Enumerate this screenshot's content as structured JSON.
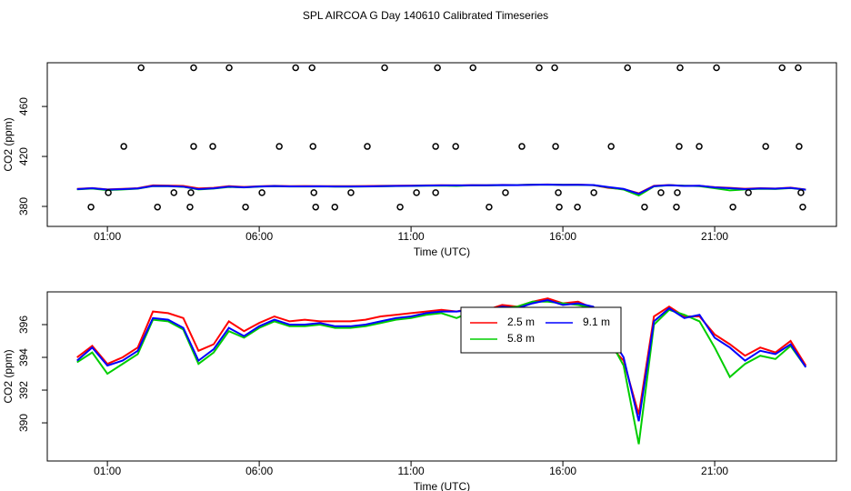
{
  "title": "SPL AIRCOA G  Day 140610  Calibrated Timeseries",
  "chart_data": [
    {
      "type": "line",
      "xlabel": "Time (UTC)",
      "ylabel": "CO2 (ppm)",
      "xlim": [
        -0.98,
        25.01
      ],
      "ylim": [
        364,
        495
      ],
      "xticks": [
        {
          "value": 1,
          "label": "01:00"
        },
        {
          "value": 6,
          "label": "06:00"
        },
        {
          "value": 11,
          "label": "11:00"
        },
        {
          "value": 16,
          "label": "16:00"
        },
        {
          "value": 21,
          "label": "21:00"
        }
      ],
      "yticks": [
        380,
        420,
        460
      ],
      "x": [
        0,
        0.5,
        1,
        1.5,
        2,
        2.5,
        3,
        3.5,
        4,
        4.5,
        5,
        5.5,
        6,
        6.5,
        7,
        7.5,
        8,
        8.5,
        9,
        9.5,
        10,
        10.5,
        11,
        11.5,
        12,
        12.5,
        13,
        13.5,
        14,
        14.5,
        15,
        15.5,
        16,
        16.5,
        17,
        17.5,
        18,
        18.5,
        19,
        19.5,
        20,
        20.5,
        21,
        21.5,
        22,
        22.5,
        23,
        23.5,
        24
      ],
      "series": [
        {
          "color": "#ff0000",
          "values": [
            394.0,
            394.7,
            393.6,
            394.0,
            394.6,
            396.8,
            396.7,
            396.4,
            394.4,
            394.8,
            396.2,
            395.6,
            396.1,
            396.5,
            396.2,
            396.3,
            396.2,
            396.2,
            396.2,
            396.3,
            396.5,
            396.6,
            396.7,
            396.8,
            396.9,
            396.8,
            397.0,
            396.9,
            397.2,
            397.1,
            397.4,
            397.6,
            397.3,
            397.4,
            397.0,
            394.8,
            393.8,
            390.5,
            396.5,
            397.1,
            396.5,
            396.5,
            395.4,
            394.8,
            394.1,
            394.6,
            394.3,
            395.0,
            393.5
          ]
        },
        {
          "color": "#00cd00",
          "values": [
            393.7,
            394.3,
            393.0,
            393.6,
            394.2,
            396.3,
            396.2,
            395.7,
            393.6,
            394.3,
            395.6,
            395.2,
            395.8,
            396.2,
            395.9,
            395.9,
            396.0,
            395.8,
            395.8,
            395.9,
            396.1,
            396.3,
            396.4,
            396.6,
            396.7,
            396.4,
            396.8,
            396.8,
            397.0,
            397.1,
            397.4,
            397.4,
            397.3,
            397.2,
            397.0,
            395.2,
            393.5,
            388.7,
            396.0,
            396.9,
            396.6,
            396.2,
            394.6,
            392.8,
            393.6,
            394.1,
            393.9,
            394.7,
            393.4
          ]
        },
        {
          "color": "#0000ff",
          "values": [
            393.8,
            394.6,
            393.5,
            393.8,
            394.4,
            396.4,
            396.3,
            395.8,
            393.8,
            394.5,
            395.8,
            395.3,
            395.9,
            396.3,
            396.0,
            396.0,
            396.1,
            395.9,
            395.9,
            396.0,
            396.2,
            396.4,
            396.5,
            396.7,
            396.8,
            396.8,
            396.9,
            396.9,
            397.1,
            397.0,
            397.3,
            397.5,
            397.2,
            397.3,
            397.1,
            395.5,
            394.0,
            390.1,
            396.2,
            397.0,
            396.4,
            396.6,
            395.2,
            394.6,
            393.8,
            394.4,
            394.2,
            394.8,
            393.4
          ]
        }
      ],
      "points": {
        "color": "#000000",
        "x": [
          2.11,
          3.84,
          5.01,
          7.2,
          7.74,
          10.13,
          11.87,
          13.04,
          15.22,
          15.73,
          18.13,
          19.86,
          21.06,
          23.22,
          23.75,
          1.54,
          3.84,
          4.47,
          6.66,
          7.77,
          9.56,
          11.81,
          12.47,
          14.65,
          15.76,
          17.59,
          19.83,
          20.49,
          22.68,
          23.78,
          1.03,
          3.19,
          3.75,
          6.09,
          7.8,
          9.02,
          11.18,
          11.81,
          14.11,
          15.85,
          17.02,
          19.23,
          19.77,
          22.11,
          23.84,
          0.46,
          2.65,
          3.72,
          5.55,
          7.86,
          8.49,
          10.64,
          13.57,
          15.88,
          16.48,
          18.69,
          19.74,
          21.6,
          23.9
        ],
        "y": [
          491,
          491,
          491,
          491,
          491,
          491,
          491,
          491,
          491,
          491,
          491,
          491,
          491,
          491,
          491,
          428,
          428,
          428,
          428,
          428,
          428,
          428,
          428,
          428,
          428,
          428,
          428,
          428,
          428,
          428,
          391,
          391,
          391,
          391,
          391,
          391,
          391,
          391,
          391,
          391,
          391,
          391,
          391,
          391,
          391,
          379.5,
          379.5,
          379.5,
          379.5,
          379.5,
          379.5,
          379.5,
          379.5,
          379.5,
          379.5,
          379.5,
          379.5,
          379.5,
          379.5
        ]
      }
    },
    {
      "type": "line",
      "xlabel": "Time (UTC)",
      "ylabel": "CO2 (ppm)",
      "xlim": [
        -0.98,
        25.01
      ],
      "ylim": [
        387.67,
        398.0
      ],
      "xticks": [
        {
          "value": 1,
          "label": "01:00"
        },
        {
          "value": 6,
          "label": "06:00"
        },
        {
          "value": 11,
          "label": "11:00"
        },
        {
          "value": 16,
          "label": "16:00"
        },
        {
          "value": 21,
          "label": "21:00"
        }
      ],
      "yticks": [
        390,
        392,
        394,
        396
      ],
      "x": [
        0,
        0.5,
        1,
        1.5,
        2,
        2.5,
        3,
        3.5,
        4,
        4.5,
        5,
        5.5,
        6,
        6.5,
        7,
        7.5,
        8,
        8.5,
        9,
        9.5,
        10,
        10.5,
        11,
        11.5,
        12,
        12.5,
        13,
        13.5,
        14,
        14.5,
        15,
        15.5,
        16,
        16.5,
        17,
        17.5,
        18,
        18.5,
        19,
        19.5,
        20,
        20.5,
        21,
        21.5,
        22,
        22.5,
        23,
        23.5,
        24
      ],
      "series": [
        {
          "name": "2.5 m",
          "color": "#ff0000",
          "values": [
            394.0,
            394.7,
            393.6,
            394.0,
            394.6,
            396.8,
            396.7,
            396.4,
            394.4,
            394.8,
            396.2,
            395.6,
            396.1,
            396.5,
            396.2,
            396.3,
            396.2,
            396.2,
            396.2,
            396.3,
            396.5,
            396.6,
            396.7,
            396.8,
            396.9,
            396.8,
            397.0,
            396.9,
            397.2,
            397.1,
            397.4,
            397.6,
            397.3,
            397.4,
            397.0,
            394.8,
            393.8,
            390.5,
            396.5,
            397.1,
            396.5,
            396.5,
            395.4,
            394.8,
            394.1,
            394.6,
            394.3,
            395.0,
            393.5
          ]
        },
        {
          "name": "5.8 m",
          "color": "#00cd00",
          "values": [
            393.7,
            394.3,
            393.0,
            393.6,
            394.2,
            396.3,
            396.2,
            395.7,
            393.6,
            394.3,
            395.6,
            395.2,
            395.8,
            396.2,
            395.9,
            395.9,
            396.0,
            395.8,
            395.8,
            395.9,
            396.1,
            396.3,
            396.4,
            396.6,
            396.7,
            396.4,
            396.8,
            396.8,
            397.0,
            397.1,
            397.4,
            397.4,
            397.3,
            397.2,
            397.0,
            395.2,
            393.5,
            388.7,
            396.0,
            396.9,
            396.6,
            396.2,
            394.6,
            392.8,
            393.6,
            394.1,
            393.9,
            394.7,
            393.4
          ]
        },
        {
          "name": "9.1 m",
          "color": "#0000ff",
          "values": [
            393.8,
            394.6,
            393.5,
            393.8,
            394.4,
            396.4,
            396.3,
            395.8,
            393.8,
            394.5,
            395.8,
            395.3,
            395.9,
            396.3,
            396.0,
            396.0,
            396.1,
            395.9,
            395.9,
            396.0,
            396.2,
            396.4,
            396.5,
            396.7,
            396.8,
            396.8,
            396.9,
            396.9,
            397.1,
            397.0,
            397.3,
            397.5,
            397.2,
            397.3,
            397.1,
            395.5,
            394.0,
            390.1,
            396.2,
            397.0,
            396.4,
            396.6,
            395.2,
            394.6,
            393.8,
            394.4,
            394.2,
            394.8,
            393.4
          ]
        }
      ]
    }
  ]
}
